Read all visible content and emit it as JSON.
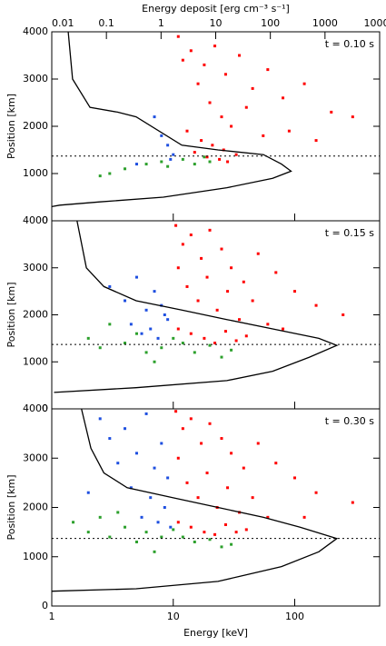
{
  "chart_data": [
    {
      "type": "scatter",
      "annotation": "t = 0.10 s",
      "ylabel": "Position [km]",
      "x2label": "Energy deposit [erg cm⁻³ s⁻¹]",
      "xlim": [
        1,
        500
      ],
      "xticks": [
        1,
        10,
        100
      ],
      "x_log": true,
      "x2lim": [
        0.01,
        10000
      ],
      "x2ticks": [
        0.01,
        0.1,
        1,
        10,
        100,
        1000,
        10000
      ],
      "ylim": [
        0,
        4000
      ],
      "yticks": [
        0,
        1000,
        2000,
        3000,
        4000
      ],
      "hline_y": 1370,
      "curve": {
        "color": "#000000",
        "x": [
          0.02,
          0.024,
          0.05,
          0.16,
          0.35,
          2.4,
          11,
          75,
          160,
          240,
          110,
          16,
          1.1,
          0.076,
          0.014,
          0.01
        ],
        "y": [
          4000,
          3000,
          2400,
          2300,
          2200,
          1600,
          1500,
          1400,
          1200,
          1050,
          900,
          700,
          500,
          400,
          330,
          300
        ]
      },
      "series": [
        {
          "color": "#ff0000",
          "x": [
            11,
            14,
            18,
            22,
            27,
            35,
            45,
            60,
            80,
            120,
            200,
            12,
            16,
            20,
            25,
            30,
            40,
            55,
            13,
            17,
            21,
            26,
            33,
            15,
            19,
            24,
            28,
            150,
            300,
            90
          ],
          "y": [
            3900,
            3600,
            3300,
            3700,
            3100,
            3500,
            2800,
            3200,
            2600,
            2900,
            2300,
            3400,
            2900,
            2500,
            2200,
            2000,
            2400,
            1800,
            1900,
            1700,
            1600,
            1500,
            1400,
            1450,
            1350,
            1300,
            1250,
            1700,
            2200,
            1900
          ]
        },
        {
          "color": "#1e4fe0",
          "x": [
            7,
            8,
            9,
            5,
            9.5,
            10
          ],
          "y": [
            2200,
            1800,
            1600,
            1200,
            1300,
            1400
          ]
        },
        {
          "color": "#2ca02c",
          "x": [
            3,
            4,
            6,
            8,
            12,
            15,
            18,
            20,
            9,
            2.5
          ],
          "y": [
            1000,
            1100,
            1200,
            1250,
            1300,
            1200,
            1350,
            1250,
            1150,
            950
          ]
        }
      ]
    },
    {
      "type": "scatter",
      "annotation": "t = 0.15 s",
      "ylabel": "Position [km]",
      "xlim": [
        1,
        500
      ],
      "xticks": [
        1,
        10,
        100
      ],
      "x_log": true,
      "x2lim": [
        0.01,
        10000
      ],
      "ylim": [
        0,
        4000
      ],
      "yticks": [
        0,
        1000,
        2000,
        3000,
        4000
      ],
      "hline_y": 1370,
      "curve": {
        "color": "#000000",
        "x": [
          0.029,
          0.043,
          0.09,
          0.35,
          2.4,
          16,
          110,
          770,
          1650,
          520,
          110,
          16,
          0.35,
          0.011
        ],
        "y": [
          4000,
          3000,
          2600,
          2300,
          2100,
          1900,
          1700,
          1500,
          1350,
          1100,
          800,
          600,
          450,
          350
        ]
      },
      "series": [
        {
          "color": "#ff0000",
          "x": [
            10.5,
            12,
            14,
            17,
            20,
            25,
            30,
            38,
            50,
            70,
            100,
            150,
            250,
            11,
            13,
            16,
            19,
            23,
            28,
            35,
            45,
            60,
            11,
            14,
            18,
            22,
            27,
            33,
            40,
            80
          ],
          "y": [
            3900,
            3500,
            3700,
            3200,
            3800,
            3400,
            3000,
            2700,
            3300,
            2900,
            2500,
            2200,
            2000,
            3000,
            2600,
            2300,
            2800,
            2100,
            2500,
            1900,
            2300,
            1800,
            1700,
            1600,
            1500,
            1400,
            1650,
            1450,
            1550,
            1700
          ]
        },
        {
          "color": "#1e4fe0",
          "x": [
            3,
            4,
            5,
            6,
            7,
            8,
            9,
            4.5,
            6.5,
            8.5,
            5.5,
            7.5
          ],
          "y": [
            2600,
            2300,
            2800,
            2100,
            2500,
            2200,
            1900,
            1800,
            1700,
            2000,
            1600,
            1500
          ]
        },
        {
          "color": "#2ca02c",
          "x": [
            2,
            2.5,
            3,
            4,
            5,
            6,
            8,
            10,
            12,
            15,
            20,
            25,
            30,
            7
          ],
          "y": [
            1500,
            1300,
            1800,
            1400,
            1600,
            1200,
            1300,
            1500,
            1400,
            1200,
            1350,
            1100,
            1250,
            1000
          ]
        }
      ]
    },
    {
      "type": "scatter",
      "annotation": "t = 0.30 s",
      "ylabel": "Position [km]",
      "xlabel": "Energy [keV]",
      "xlim": [
        1,
        500
      ],
      "xticks": [
        1,
        10,
        100
      ],
      "x_log": true,
      "x2lim": [
        0.01,
        10000
      ],
      "ylim": [
        0,
        4000
      ],
      "yticks": [
        0,
        1000,
        2000,
        3000,
        4000
      ],
      "hline_y": 1370,
      "curve": {
        "color": "#000000",
        "x": [
          0.035,
          0.052,
          0.09,
          0.24,
          1.6,
          11,
          75,
          350,
          1650,
          770,
          160,
          11,
          0.35,
          0.01
        ],
        "y": [
          4000,
          3200,
          2700,
          2400,
          2200,
          2000,
          1800,
          1600,
          1370,
          1100,
          800,
          500,
          350,
          300
        ]
      },
      "series": [
        {
          "color": "#ff0000",
          "x": [
            10.5,
            12,
            14,
            17,
            20,
            25,
            30,
            38,
            50,
            70,
            100,
            150,
            300,
            11,
            13,
            16,
            19,
            23,
            28,
            35,
            45,
            60,
            11,
            14,
            18,
            22,
            27,
            33,
            40,
            120
          ],
          "y": [
            3950,
            3600,
            3800,
            3300,
            3700,
            3400,
            3100,
            2800,
            3300,
            2900,
            2600,
            2300,
            2100,
            3000,
            2500,
            2200,
            2700,
            2000,
            2400,
            1900,
            2200,
            1800,
            1700,
            1600,
            1500,
            1450,
            1650,
            1500,
            1550,
            1800
          ]
        },
        {
          "color": "#1e4fe0",
          "x": [
            2.5,
            3,
            4,
            5,
            6,
            7,
            8,
            9,
            3.5,
            4.5,
            6.5,
            8.5,
            5.5,
            7.5,
            9.5,
            2
          ],
          "y": [
            3800,
            3400,
            3600,
            3100,
            3900,
            2800,
            3300,
            2600,
            2900,
            2400,
            2200,
            2000,
            1800,
            1700,
            1600,
            2300
          ]
        },
        {
          "color": "#2ca02c",
          "x": [
            1.5,
            2,
            2.5,
            3,
            4,
            5,
            6,
            8,
            10,
            12,
            15,
            20,
            25,
            30,
            7,
            3.5
          ],
          "y": [
            1700,
            1500,
            1800,
            1400,
            1600,
            1300,
            1500,
            1400,
            1550,
            1400,
            1300,
            1350,
            1200,
            1250,
            1100,
            1900
          ]
        }
      ]
    }
  ]
}
